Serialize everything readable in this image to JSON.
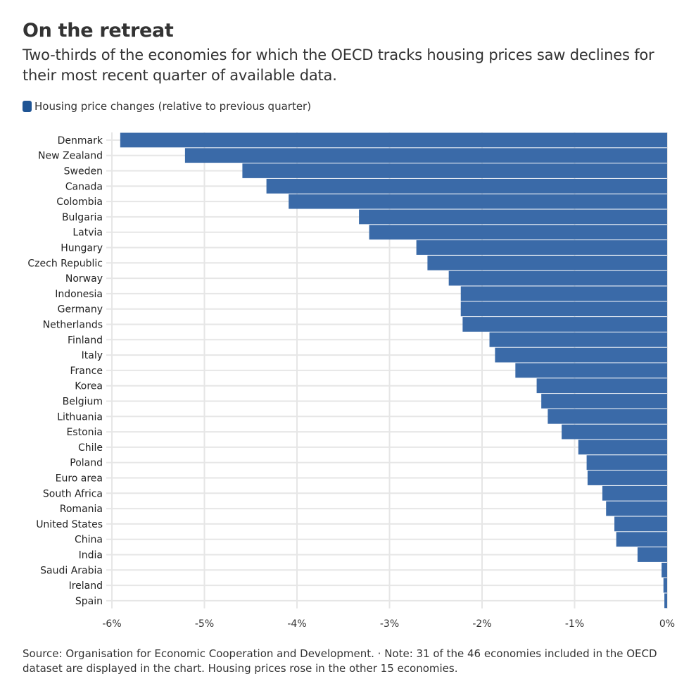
{
  "title": "On the retreat",
  "subtitle": "Two-thirds of the economies for which the OECD tracks housing prices saw declines for their most recent quarter of available data.",
  "footer": "Source: Organisation for Economic Cooperation and Development. · Note: 31 of the 46 economies included in the OECD dataset are displayed in the chart. Housing prices rose in the other 15 economies.",
  "colors": {
    "bar": "#3a6aa8",
    "legend": "#1f5494",
    "grid": "#e6e6e6"
  },
  "chart_data": {
    "type": "bar",
    "orientation": "horizontal",
    "legend": "Housing price changes (relative to previous quarter)",
    "legend_position": "top-left",
    "grid": true,
    "xlim": [
      -6,
      0
    ],
    "xticks": [
      -6,
      -5,
      -4,
      -3,
      -2,
      -1,
      0
    ],
    "xtick_labels": [
      "-6%",
      "-5%",
      "-4%",
      "-3%",
      "-2%",
      "-1%",
      "0%"
    ],
    "categories": [
      "Denmark",
      "New Zealand",
      "Sweden",
      "Canada",
      "Colombia",
      "Bulgaria",
      "Latvia",
      "Hungary",
      "Czech Republic",
      "Norway",
      "Indonesia",
      "Germany",
      "Netherlands",
      "Finland",
      "Italy",
      "France",
      "Korea",
      "Belgium",
      "Lithuania",
      "Estonia",
      "Chile",
      "Poland",
      "Euro area",
      "South Africa",
      "Romania",
      "United States",
      "China",
      "India",
      "Saudi Arabia",
      "Ireland",
      "Spain"
    ],
    "values": [
      -5.91,
      -5.21,
      -4.59,
      -4.33,
      -4.09,
      -3.33,
      -3.22,
      -2.71,
      -2.59,
      -2.36,
      -2.23,
      -2.23,
      -2.21,
      -1.92,
      -1.86,
      -1.64,
      -1.41,
      -1.36,
      -1.29,
      -1.14,
      -0.96,
      -0.87,
      -0.86,
      -0.7,
      -0.66,
      -0.57,
      -0.55,
      -0.32,
      -0.06,
      -0.04,
      -0.03
    ]
  }
}
